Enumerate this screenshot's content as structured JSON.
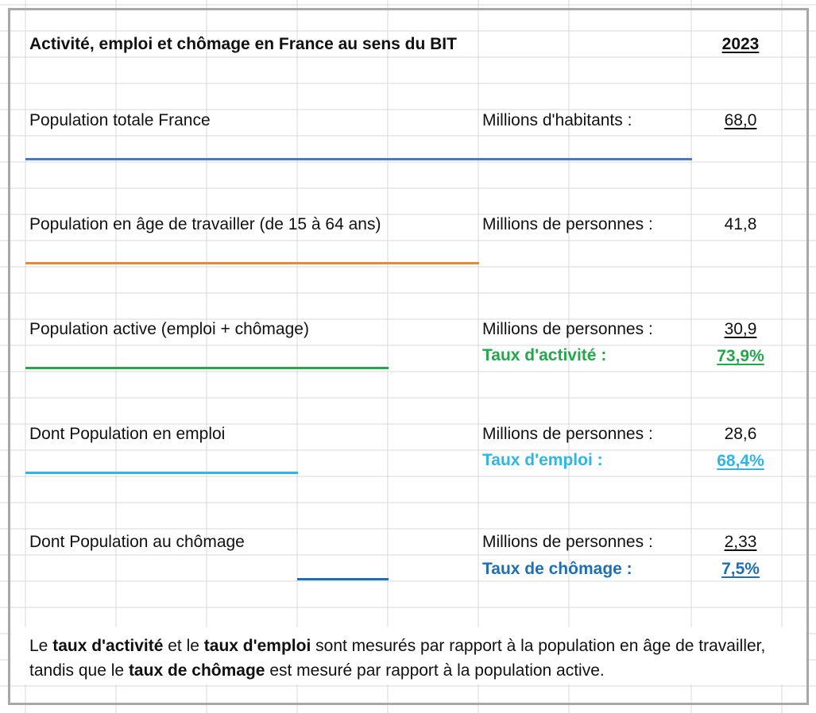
{
  "title": "Activité, emploi et chômage en France au sens du BIT",
  "year": "2023",
  "colors": {
    "blue_line": "#4a78c4",
    "orange_line": "#e08a3c",
    "green": "#22a84a",
    "light_blue": "#2eb6e8",
    "dark_blue": "#1e6fb8"
  },
  "rows": [
    {
      "label": "Population totale France",
      "unit": "Millions d'habitants :",
      "value": "68,0"
    },
    {
      "label": "Population en âge de travailler (de 15 à 64 ans)",
      "unit": "Millions de personnes :",
      "value": "41,8"
    },
    {
      "label": "Population active (emploi + chômage)",
      "unit": "Millions de personnes :",
      "value": "30,9",
      "rate_label": "Taux d'activité :",
      "rate_value": "73,9%"
    },
    {
      "label": "Dont Population en emploi",
      "unit": "Millions de personnes :",
      "value": "28,6",
      "rate_label": "Taux d'emploi :",
      "rate_value": "68,4%"
    },
    {
      "label": "Dont Population au chômage",
      "unit": "Millions de personnes :",
      "value": "2,33",
      "rate_label": "Taux de chômage :",
      "rate_value": "7,5%"
    }
  ],
  "footnote": {
    "p1": "Le ",
    "b1": "taux d'activité",
    "p2": " et le ",
    "b2": "taux d'emploi",
    "p3": " sont mesurés par rapport à la population en âge de travailler, tandis que le ",
    "b3": "taux de chômage",
    "p4": " est mesuré par rapport à la population active."
  }
}
